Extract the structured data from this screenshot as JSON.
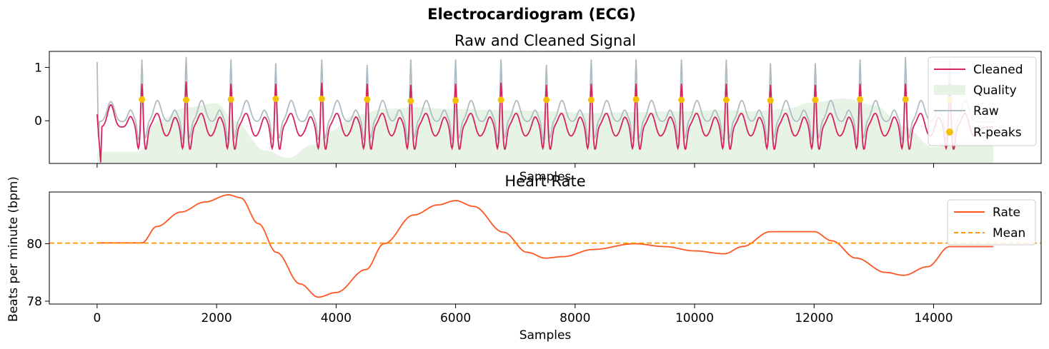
{
  "figure": {
    "suptitle": "Electrocardiogram (ECG)"
  },
  "colors": {
    "cleaned": "#d6225f",
    "quality": "#e7f3e5",
    "raw": "#aebcc4",
    "rpeaks": "#f5c000",
    "rate": "#ff5722",
    "mean": "#ff9800"
  },
  "chart_data": [
    {
      "type": "line",
      "title": "Raw and Cleaned Signal",
      "xlabel": "Samples",
      "ylabel": "",
      "xlim": [
        -800,
        15800
      ],
      "ylim": [
        -0.8,
        1.3
      ],
      "yticks": [
        0,
        1
      ],
      "xtick_labels_visible": false,
      "grid": false,
      "legend": {
        "placement": "top-right",
        "entries": [
          "Cleaned",
          "Quality",
          "Raw",
          "R-peaks"
        ]
      },
      "peaks_x": [
        750,
        1490,
        2240,
        2990,
        3760,
        4520,
        5250,
        6000,
        6760,
        7520,
        8270,
        9020,
        9780,
        10530,
        11270,
        12020,
        12770,
        13530,
        14270
      ],
      "peaks_y": [
        0.4,
        0.39,
        0.4,
        0.41,
        0.41,
        0.4,
        0.37,
        0.38,
        0.39,
        0.39,
        0.39,
        0.4,
        0.39,
        0.39,
        0.38,
        0.39,
        0.4,
        0.4,
        0.4
      ],
      "raw_peak_heights": [
        1.15,
        1.2,
        1.15,
        1.08,
        1.15,
        1.05,
        1.15,
        1.15,
        1.15,
        1.05,
        1.15,
        1.15,
        1.15,
        1.15,
        1.08,
        1.08,
        1.15,
        1.2,
        1.15
      ],
      "cleaned_peak_heights": [
        0.62,
        0.66,
        0.62,
        0.62,
        0.64,
        0.62,
        0.6,
        0.62,
        0.64,
        0.6,
        0.62,
        0.62,
        0.62,
        0.62,
        0.6,
        0.6,
        0.62,
        0.62,
        0.62
      ],
      "quality": {
        "x": [
          0,
          300,
          700,
          1000,
          1500,
          2000,
          2300,
          2800,
          3200,
          3600,
          3900,
          4300,
          4800,
          5300,
          6000,
          6700,
          7500,
          8200,
          9000,
          9800,
          10500,
          11000,
          11500,
          12000,
          12500,
          13000,
          13500,
          14000,
          14500,
          15000
        ],
        "y": [
          -0.58,
          -0.58,
          -0.58,
          0.0,
          0.25,
          0.33,
          0.0,
          -0.55,
          -0.7,
          -0.45,
          -0.2,
          0.1,
          0.22,
          0.25,
          0.22,
          0.2,
          0.18,
          0.15,
          0.16,
          0.18,
          0.2,
          0.18,
          0.22,
          0.35,
          0.42,
          0.3,
          -0.1,
          -0.5,
          -0.3,
          -0.1
        ],
        "baseline": -0.8
      }
    },
    {
      "type": "line",
      "title": "Heart Rate",
      "xlabel": "Samples",
      "ylabel": "Beats per minute (bpm)",
      "xlim": [
        -800,
        15800
      ],
      "ylim": [
        77.9,
        81.8
      ],
      "xticks": [
        0,
        2000,
        4000,
        6000,
        8000,
        10000,
        12000,
        14000
      ],
      "yticks": [
        78,
        80
      ],
      "grid": false,
      "legend": {
        "placement": "top-right",
        "entries": [
          "Rate",
          "Mean"
        ]
      },
      "mean": 80.02,
      "series": [
        {
          "name": "Rate",
          "x": [
            0,
            750,
            1000,
            1400,
            1800,
            2200,
            2400,
            2700,
            3000,
            3400,
            3700,
            4000,
            4500,
            4800,
            5300,
            5700,
            6000,
            6300,
            6800,
            7200,
            7500,
            7800,
            8300,
            9000,
            9500,
            10000,
            10500,
            10800,
            11270,
            12000,
            12300,
            12700,
            13200,
            13500,
            13900,
            14270,
            15000
          ],
          "y": [
            80.03,
            80.03,
            80.6,
            81.1,
            81.45,
            81.7,
            81.6,
            80.7,
            79.7,
            78.6,
            78.14,
            78.3,
            79.1,
            80.0,
            81.0,
            81.35,
            81.5,
            81.3,
            80.4,
            79.7,
            79.5,
            79.55,
            79.8,
            80.0,
            79.9,
            79.75,
            79.65,
            79.9,
            80.42,
            80.42,
            80.1,
            79.5,
            79.0,
            78.9,
            79.2,
            79.9,
            79.9
          ]
        },
        {
          "name": "Mean",
          "y": 80.02
        }
      ]
    }
  ]
}
